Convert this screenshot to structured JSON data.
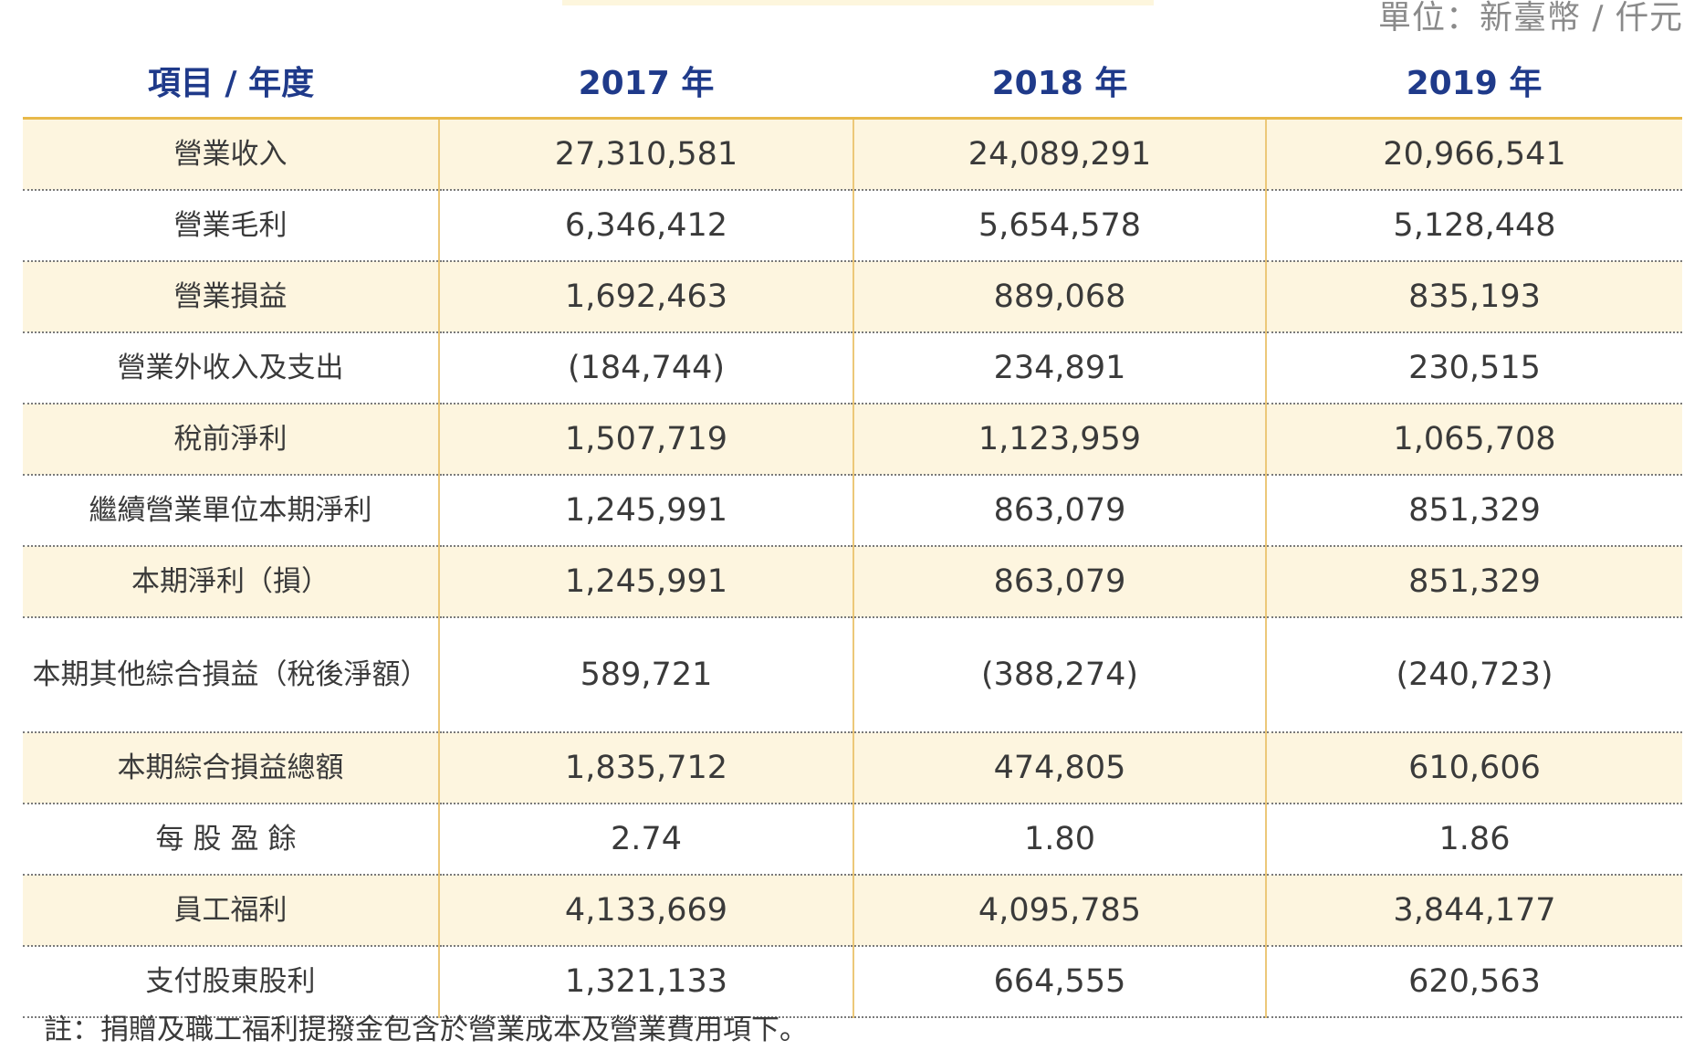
{
  "unit": "單位：新臺幣 / 仟元",
  "table": {
    "headers": [
      "項目 / 年度",
      "2017 年",
      "2018 年",
      "2019 年"
    ],
    "rows": [
      {
        "label": "營業收入",
        "values": [
          "27,310,581",
          "24,089,291",
          "20,966,541"
        ]
      },
      {
        "label": "營業毛利",
        "values": [
          "6,346,412",
          "5,654,578",
          "5,128,448"
        ]
      },
      {
        "label": "營業損益",
        "values": [
          "1,692,463",
          "889,068",
          "835,193"
        ]
      },
      {
        "label": "營業外收入及支出",
        "values": [
          "(184,744)",
          "234,891",
          "230,515"
        ]
      },
      {
        "label": "稅前淨利",
        "values": [
          "1,507,719",
          "1,123,959",
          "1,065,708"
        ]
      },
      {
        "label": "繼續營業單位本期淨利",
        "values": [
          "1,245,991",
          "863,079",
          "851,329"
        ]
      },
      {
        "label": "本期淨利（損）",
        "values": [
          "1,245,991",
          "863,079",
          "851,329"
        ]
      },
      {
        "label": "本期其他綜合損益（稅後淨額）",
        "values": [
          "589,721",
          "(388,274)",
          "(240,723)"
        ]
      },
      {
        "label": "本期綜合損益總額",
        "values": [
          "1,835,712",
          "474,805",
          "610,606"
        ]
      },
      {
        "label": "每股盈餘",
        "values": [
          "2.74",
          "1.80",
          "1.86"
        ]
      },
      {
        "label": "員工福利",
        "values": [
          "4,133,669",
          "4,095,785",
          "3,844,177"
        ]
      },
      {
        "label": "支付股東股利",
        "values": [
          "1,321,133",
          "664,555",
          "620,563"
        ]
      }
    ]
  },
  "footnote": "註：捐贈及職工福利提撥金包含於營業成本及營業費用項下。"
}
